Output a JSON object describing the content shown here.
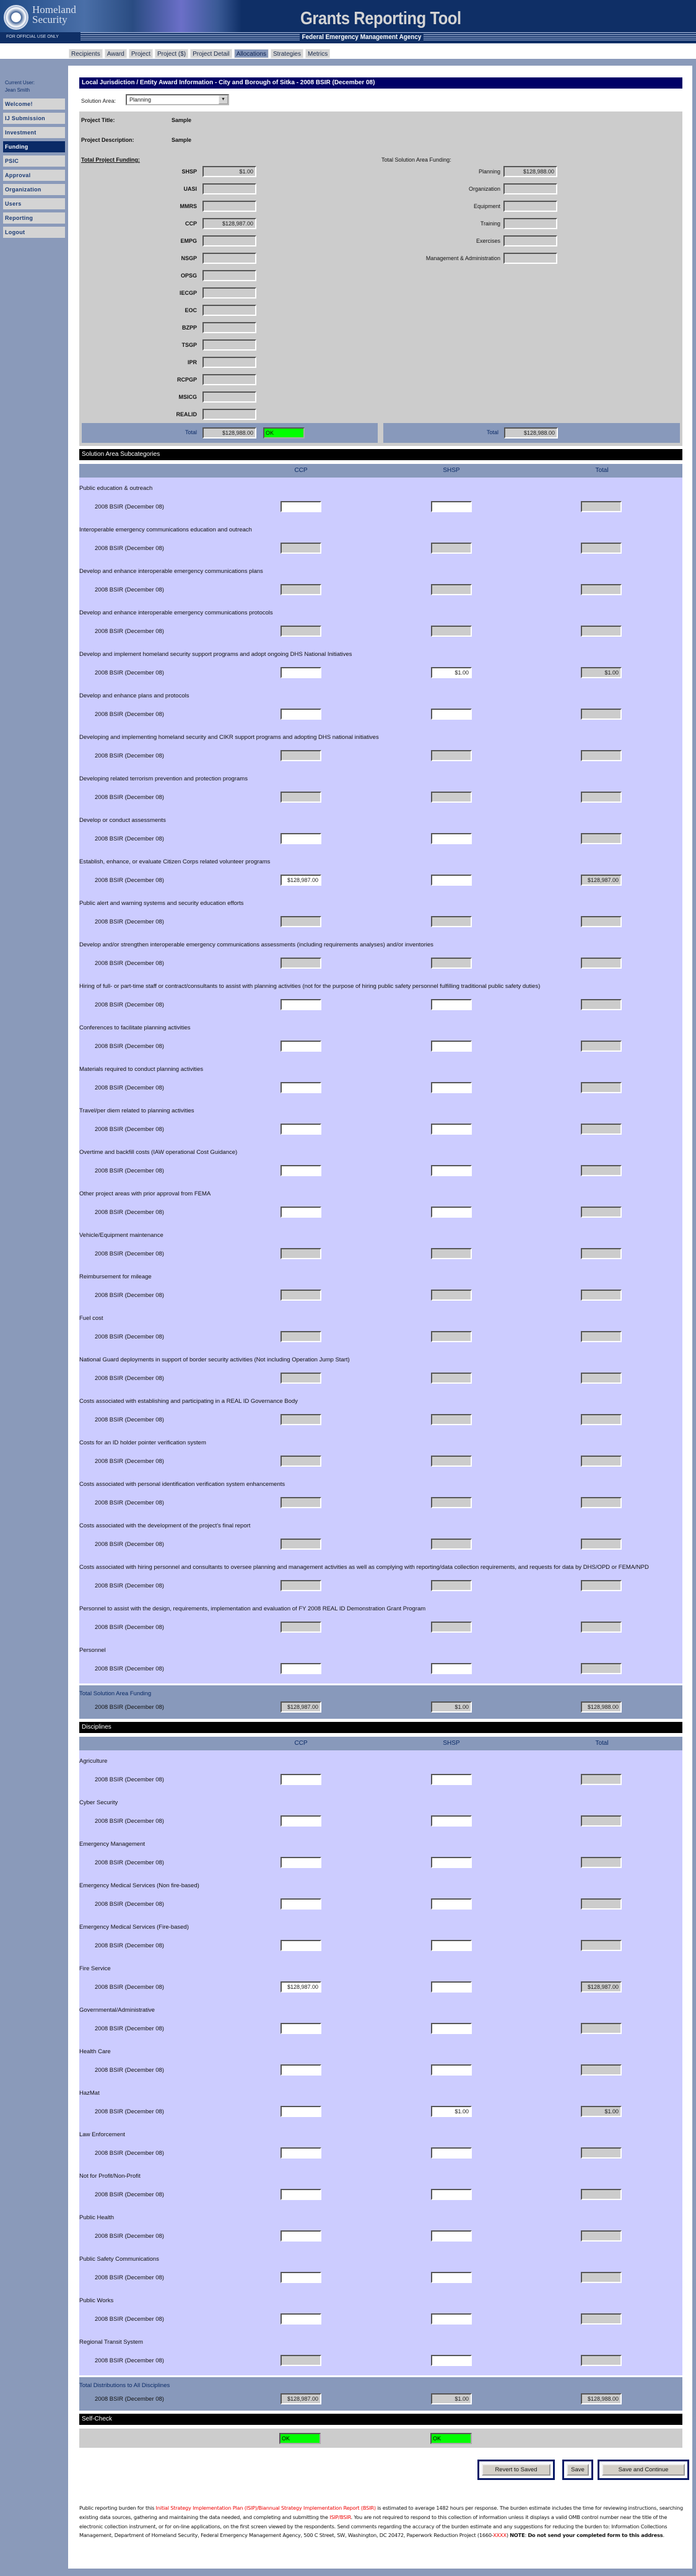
{
  "header": {
    "agency_logo": "Homeland Security",
    "brand_line1": "Homeland",
    "brand_line2": "Security",
    "fouo": "FOR OFFICIAL USE ONLY",
    "app_title": "Grants Reporting Tool",
    "agency": "Federal Emergency Management Agency"
  },
  "tabs": [
    {
      "label": "Recipients",
      "selected": false
    },
    {
      "label": "Award",
      "selected": false
    },
    {
      "label": "Project",
      "selected": false
    },
    {
      "label": "Project ($)",
      "selected": false
    },
    {
      "label": "Project Detail",
      "selected": false
    },
    {
      "label": "Allocations",
      "selected": true
    },
    {
      "label": "Strategies",
      "selected": false
    },
    {
      "label": "Metrics",
      "selected": false
    }
  ],
  "sidebar": {
    "current_user_label": "Current User:",
    "current_user": "Jean Smith",
    "items": [
      {
        "label": "Welcome!",
        "selected": false
      },
      {
        "label": "IJ Submission",
        "selected": false
      },
      {
        "label": "Investment",
        "selected": false
      },
      {
        "label": "Funding",
        "selected": true
      },
      {
        "label": "PSIC",
        "selected": false
      },
      {
        "label": "Approval",
        "selected": false
      },
      {
        "label": "Organization",
        "selected": false
      },
      {
        "label": "Users",
        "selected": false
      },
      {
        "label": "Reporting",
        "selected": false
      },
      {
        "label": "Logout",
        "selected": false
      }
    ]
  },
  "main": {
    "title": "Local Jurisdiction / Entity Award Information - City and Borough of Sitka - 2008 BSIR (December 08)",
    "solution_area_label": "Solution Area:",
    "solution_area_value": "Planning",
    "project_title_label": "Project Title:",
    "project_title": "Sample",
    "project_description_label": "Project Description:",
    "project_description": "Sample",
    "total_project_funding_label": "Total Project Funding:",
    "total_solution_area_funding_label": "Total Solution Area Funding:",
    "program_funding": [
      {
        "label": "SHSP",
        "value": "$1.00"
      },
      {
        "label": "UASI",
        "value": ""
      },
      {
        "label": "MMRS",
        "value": ""
      },
      {
        "label": "CCP",
        "value": "$128,987.00"
      },
      {
        "label": "EMPG",
        "value": ""
      },
      {
        "label": "NSGP",
        "value": ""
      },
      {
        "label": "OPSG",
        "value": ""
      },
      {
        "label": "IECGP",
        "value": ""
      },
      {
        "label": "EOC",
        "value": ""
      },
      {
        "label": "BZPP",
        "value": ""
      },
      {
        "label": "TSGP",
        "value": ""
      },
      {
        "label": "IPR",
        "value": ""
      },
      {
        "label": "RCPGP",
        "value": ""
      },
      {
        "label": "MSICG",
        "value": ""
      },
      {
        "label": "REALID",
        "value": ""
      }
    ],
    "solution_area_funding": [
      {
        "label": "Planning",
        "value": "$128,988.00"
      },
      {
        "label": "Organization",
        "value": ""
      },
      {
        "label": "Equipment",
        "value": ""
      },
      {
        "label": "Training",
        "value": ""
      },
      {
        "label": "Exercises",
        "value": ""
      },
      {
        "label": "Management & Administration",
        "value": ""
      }
    ],
    "total_label": "Total",
    "program_total": "$128,988.00",
    "program_status": "OK",
    "status_color": "#00ff00",
    "solution_total": "$128,988.00"
  },
  "columns": {
    "ccp": "CCP",
    "shsp": "SHSP",
    "total": "Total"
  },
  "period_label": "2008 BSIR (December 08)",
  "subcategories": {
    "header": "Solution Area Subcategories",
    "items": [
      {
        "name": "Public education & outreach",
        "ccp": {
          "value": "",
          "editable": true
        },
        "shsp": {
          "value": "",
          "editable": true
        },
        "total": ""
      },
      {
        "name": "Interoperable emergency communications education and outreach",
        "ccp": {
          "value": "",
          "editable": false
        },
        "shsp": {
          "value": "",
          "editable": false
        },
        "total": ""
      },
      {
        "name": "Develop and enhance interoperable emergency communications plans",
        "ccp": {
          "value": "",
          "editable": false
        },
        "shsp": {
          "value": "",
          "editable": false
        },
        "total": ""
      },
      {
        "name": "Develop and enhance interoperable emergency communications protocols",
        "ccp": {
          "value": "",
          "editable": false
        },
        "shsp": {
          "value": "",
          "editable": false
        },
        "total": ""
      },
      {
        "name": "Develop and implement homeland security support programs and adopt ongoing DHS National Initiatives",
        "ccp": {
          "value": "",
          "editable": true
        },
        "shsp": {
          "value": "$1.00",
          "editable": true
        },
        "total": "$1.00"
      },
      {
        "name": "Develop and enhance plans and protocols",
        "ccp": {
          "value": "",
          "editable": true
        },
        "shsp": {
          "value": "",
          "editable": true
        },
        "total": ""
      },
      {
        "name": "Developing and implementing homeland security and CIKR support programs and adopting DHS national initiatives",
        "ccp": {
          "value": "",
          "editable": false
        },
        "shsp": {
          "value": "",
          "editable": false
        },
        "total": ""
      },
      {
        "name": "Developing related terrorism prevention and protection programs",
        "ccp": {
          "value": "",
          "editable": false
        },
        "shsp": {
          "value": "",
          "editable": false
        },
        "total": ""
      },
      {
        "name": "Develop or conduct assessments",
        "ccp": {
          "value": "",
          "editable": true
        },
        "shsp": {
          "value": "",
          "editable": true
        },
        "total": ""
      },
      {
        "name": "Establish, enhance, or evaluate Citizen Corps related volunteer programs",
        "ccp": {
          "value": "$128,987.00",
          "editable": true
        },
        "shsp": {
          "value": "",
          "editable": true
        },
        "total": "$128,987.00"
      },
      {
        "name": "Public alert and warning systems and security education efforts",
        "ccp": {
          "value": "",
          "editable": false
        },
        "shsp": {
          "value": "",
          "editable": false
        },
        "total": ""
      },
      {
        "name": "Develop and/or strengthen interoperable emergency communications assessments (including requirements analyses) and/or inventories",
        "ccp": {
          "value": "",
          "editable": false
        },
        "shsp": {
          "value": "",
          "editable": false
        },
        "total": ""
      },
      {
        "name": "Hiring of full- or part-time staff or contract/consultants to assist with planning activities (not for the purpose of hiring public safety personnel fulfilling traditional public safety duties)",
        "ccp": {
          "value": "",
          "editable": true
        },
        "shsp": {
          "value": "",
          "editable": true
        },
        "total": ""
      },
      {
        "name": "Conferences to facilitate planning activities",
        "ccp": {
          "value": "",
          "editable": true
        },
        "shsp": {
          "value": "",
          "editable": true
        },
        "total": ""
      },
      {
        "name": "Materials required to conduct planning activities",
        "ccp": {
          "value": "",
          "editable": true
        },
        "shsp": {
          "value": "",
          "editable": true
        },
        "total": ""
      },
      {
        "name": "Travel/per diem related to planning activities",
        "ccp": {
          "value": "",
          "editable": true
        },
        "shsp": {
          "value": "",
          "editable": true
        },
        "total": ""
      },
      {
        "name": "Overtime and backfill costs (IAW operational Cost Guidance)",
        "ccp": {
          "value": "",
          "editable": true
        },
        "shsp": {
          "value": "",
          "editable": true
        },
        "total": ""
      },
      {
        "name": "Other project areas with prior approval from FEMA",
        "ccp": {
          "value": "",
          "editable": true
        },
        "shsp": {
          "value": "",
          "editable": true
        },
        "total": ""
      },
      {
        "name": "Vehicle/Equipment maintenance",
        "ccp": {
          "value": "",
          "editable": false
        },
        "shsp": {
          "value": "",
          "editable": false
        },
        "total": ""
      },
      {
        "name": "Reimbursement for mileage",
        "ccp": {
          "value": "",
          "editable": false
        },
        "shsp": {
          "value": "",
          "editable": false
        },
        "total": ""
      },
      {
        "name": "Fuel cost",
        "ccp": {
          "value": "",
          "editable": false
        },
        "shsp": {
          "value": "",
          "editable": false
        },
        "total": ""
      },
      {
        "name": "National Guard deployments in support of border security activities (Not including Operation Jump Start)",
        "ccp": {
          "value": "",
          "editable": false
        },
        "shsp": {
          "value": "",
          "editable": false
        },
        "total": ""
      },
      {
        "name": "Costs associated with establishing and participating in a REAL ID Governance Body",
        "ccp": {
          "value": "",
          "editable": false
        },
        "shsp": {
          "value": "",
          "editable": false
        },
        "total": ""
      },
      {
        "name": "Costs for an ID holder pointer verification system",
        "ccp": {
          "value": "",
          "editable": false
        },
        "shsp": {
          "value": "",
          "editable": false
        },
        "total": ""
      },
      {
        "name": "Costs associated with personal identification verification system enhancements",
        "ccp": {
          "value": "",
          "editable": false
        },
        "shsp": {
          "value": "",
          "editable": false
        },
        "total": ""
      },
      {
        "name": "Costs associated with the development of the project's final report",
        "ccp": {
          "value": "",
          "editable": false
        },
        "shsp": {
          "value": "",
          "editable": false
        },
        "total": ""
      },
      {
        "name": "Costs associated with hiring personnel and consultants to oversee planning and management activities as well as complying with reporting/data collection requirements, and requests for data by DHS/OPD or FEMA/NPD",
        "ccp": {
          "value": "",
          "editable": false
        },
        "shsp": {
          "value": "",
          "editable": false
        },
        "total": ""
      },
      {
        "name": "Personnel to assist with the design, requirements, implementation and evaluation of FY 2008 REAL ID Demonstration Grant Program",
        "ccp": {
          "value": "",
          "editable": false
        },
        "shsp": {
          "value": "",
          "editable": false
        },
        "total": ""
      },
      {
        "name": "Personnel",
        "ccp": {
          "value": "",
          "editable": true
        },
        "shsp": {
          "value": "",
          "editable": true
        },
        "total": ""
      }
    ],
    "total_label": "Total Solution Area Funding",
    "totals": {
      "ccp": "$128,987.00",
      "shsp": "$1.00",
      "total": "$128,988.00"
    }
  },
  "disciplines": {
    "header": "Disciplines",
    "items": [
      {
        "name": "Agriculture",
        "ccp": {
          "value": "",
          "editable": true
        },
        "shsp": {
          "value": "",
          "editable": true
        },
        "total": ""
      },
      {
        "name": "Cyber Security",
        "ccp": {
          "value": "",
          "editable": true
        },
        "shsp": {
          "value": "",
          "editable": true
        },
        "total": ""
      },
      {
        "name": "Emergency Management",
        "ccp": {
          "value": "",
          "editable": true
        },
        "shsp": {
          "value": "",
          "editable": true
        },
        "total": ""
      },
      {
        "name": "Emergency Medical Services (Non fire-based)",
        "ccp": {
          "value": "",
          "editable": true
        },
        "shsp": {
          "value": "",
          "editable": true
        },
        "total": ""
      },
      {
        "name": "Emergency Medical Services (Fire-based)",
        "ccp": {
          "value": "",
          "editable": true
        },
        "shsp": {
          "value": "",
          "editable": true
        },
        "total": ""
      },
      {
        "name": "Fire Service",
        "ccp": {
          "value": "$128,987.00",
          "editable": true
        },
        "shsp": {
          "value": "",
          "editable": true
        },
        "total": "$128,987.00"
      },
      {
        "name": "Governmental/Administrative",
        "ccp": {
          "value": "",
          "editable": true
        },
        "shsp": {
          "value": "",
          "editable": true
        },
        "total": ""
      },
      {
        "name": "Health Care",
        "ccp": {
          "value": "",
          "editable": true
        },
        "shsp": {
          "value": "",
          "editable": true
        },
        "total": ""
      },
      {
        "name": "HazMat",
        "ccp": {
          "value": "",
          "editable": true
        },
        "shsp": {
          "value": "$1.00",
          "editable": true
        },
        "total": "$1.00"
      },
      {
        "name": "Law Enforcement",
        "ccp": {
          "value": "",
          "editable": true
        },
        "shsp": {
          "value": "",
          "editable": true
        },
        "total": ""
      },
      {
        "name": "Not for Profit/Non-Profit",
        "ccp": {
          "value": "",
          "editable": true
        },
        "shsp": {
          "value": "",
          "editable": true
        },
        "total": ""
      },
      {
        "name": "Public Health",
        "ccp": {
          "value": "",
          "editable": true
        },
        "shsp": {
          "value": "",
          "editable": true
        },
        "total": ""
      },
      {
        "name": "Public Safety Communications",
        "ccp": {
          "value": "",
          "editable": true
        },
        "shsp": {
          "value": "",
          "editable": true
        },
        "total": ""
      },
      {
        "name": "Public Works",
        "ccp": {
          "value": "",
          "editable": true
        },
        "shsp": {
          "value": "",
          "editable": true
        },
        "total": ""
      },
      {
        "name": "Regional Transit System",
        "ccp": {
          "value": "",
          "editable": false
        },
        "shsp": {
          "value": "",
          "editable": true
        },
        "total": ""
      }
    ],
    "total_label": "Total Distributions to All Disciplines",
    "totals": {
      "ccp": "$128,987.00",
      "shsp": "$1.00",
      "total": "$128,988.00"
    }
  },
  "self_check": {
    "header": "Self-Check",
    "ccp_status": "OK",
    "shsp_status": "OK"
  },
  "buttons": {
    "revert": "Revert to Saved",
    "save": "Save",
    "save_continue": "Save and Continue"
  },
  "footer": {
    "segments": [
      {
        "text": "Public reporting burden for this ",
        "style": ""
      },
      {
        "text": "Initial Strategy Implementation Plan (ISIP)/Biannual Strategy Implementation Report (BSIR)",
        "style": "red"
      },
      {
        "text": " is estimated to average 1482 hours per response. The burden estimate includes the time for reviewing instructions, searching existing data sources, gathering and maintaining the data needed, and completing and submitting the ",
        "style": ""
      },
      {
        "text": "ISIP/BSIR",
        "style": "red"
      },
      {
        "text": ". You are not required to respond to this collection of information unless it displays a valid OMB control number near the title of the electronic collection instrument, or for on-line applications, on the first screen viewed by the respondents. Send comments regarding the accuracy of the burden estimate and any suggestions for reducing the burden to: Information Collections Management, Department of Homeland Security, Federal Emergency Management Agency, 500 C Street, SW, Washington, DC 20472, Paperwork Reduction Project (1660-",
        "style": ""
      },
      {
        "text": "XXXX",
        "style": "red"
      },
      {
        "text": ") ",
        "style": ""
      },
      {
        "text": "NOTE",
        "style": "bold"
      },
      {
        "text": ": ",
        "style": ""
      },
      {
        "text": "Do not send your completed form to this address",
        "style": "bold"
      },
      {
        "text": ".",
        "style": ""
      }
    ]
  }
}
